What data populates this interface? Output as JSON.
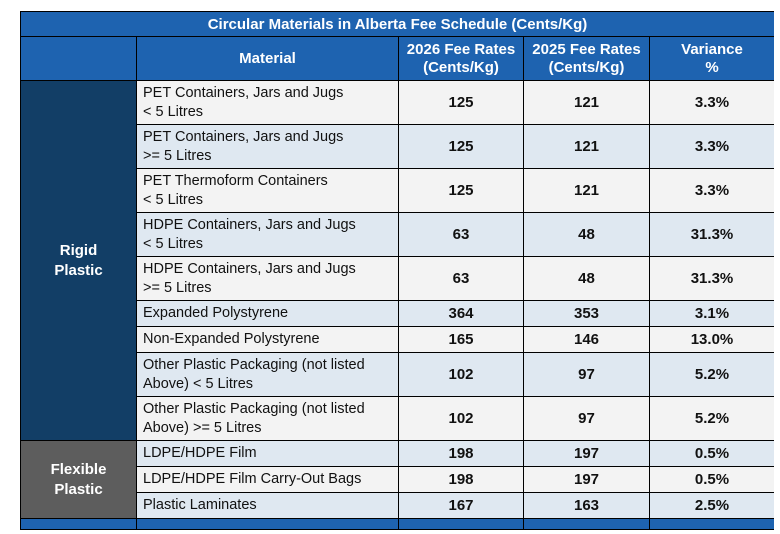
{
  "table": {
    "title": "Circular Materials in Alberta Fee Schedule (Cents/Kg)",
    "headers": {
      "material": "Material",
      "fee_2026_line1": "2026 Fee Rates",
      "fee_2026_line2": "(Cents/Kg)",
      "fee_2025_line1": "2025 Fee Rates",
      "fee_2025_line2": "(Cents/Kg)",
      "variance_line1": "Variance",
      "variance_line2": "%"
    },
    "categories": {
      "rigid_line1": "Rigid",
      "rigid_line2": "Plastic",
      "flexible_line1": "Flexible",
      "flexible_line2": "Plastic"
    },
    "rows": [
      {
        "line1": "PET Containers, Jars and Jugs",
        "line2": "< 5 Litres",
        "fee_2026": "125",
        "fee_2025": "121",
        "variance": "3.3%"
      },
      {
        "line1": "PET Containers, Jars and Jugs",
        "line2": ">= 5 Litres",
        "fee_2026": "125",
        "fee_2025": "121",
        "variance": "3.3%"
      },
      {
        "line1": "PET Thermoform Containers",
        "line2": "< 5 Litres",
        "fee_2026": "125",
        "fee_2025": "121",
        "variance": "3.3%"
      },
      {
        "line1": "HDPE Containers, Jars and Jugs",
        "line2": "< 5 Litres",
        "fee_2026": "63",
        "fee_2025": "48",
        "variance": "31.3%"
      },
      {
        "line1": "HDPE Containers, Jars and Jugs",
        "line2": ">= 5 Litres",
        "fee_2026": "63",
        "fee_2025": "48",
        "variance": "31.3%"
      },
      {
        "line1": "Expanded Polystyrene",
        "fee_2026": "364",
        "fee_2025": "353",
        "variance": "3.1%"
      },
      {
        "line1": "Non-Expanded Polystyrene",
        "fee_2026": "165",
        "fee_2025": "146",
        "variance": "13.0%"
      },
      {
        "line1": "Other Plastic Packaging (not listed",
        "line2": "Above) < 5 Litres",
        "fee_2026": "102",
        "fee_2025": "97",
        "variance": "5.2%"
      },
      {
        "line1": "Other Plastic Packaging (not listed",
        "line2": "Above) >= 5 Litres",
        "fee_2026": "102",
        "fee_2025": "97",
        "variance": "5.2%"
      },
      {
        "line1": "LDPE/HDPE Film",
        "fee_2026": "198",
        "fee_2025": "197",
        "variance": "0.5%"
      },
      {
        "line1": "LDPE/HDPE Film Carry-Out Bags",
        "fee_2026": "198",
        "fee_2025": "197",
        "variance": "0.5%"
      },
      {
        "line1": "Plastic Laminates",
        "fee_2026": "167",
        "fee_2025": "163",
        "variance": "2.5%"
      }
    ],
    "colors": {
      "header_blue": "#1e63b0",
      "rigid_navy": "#123e66",
      "flexible_gray": "#5d5d5d",
      "row_alt": "#dfe8f1",
      "row_plain": "#f3f3f3"
    }
  }
}
